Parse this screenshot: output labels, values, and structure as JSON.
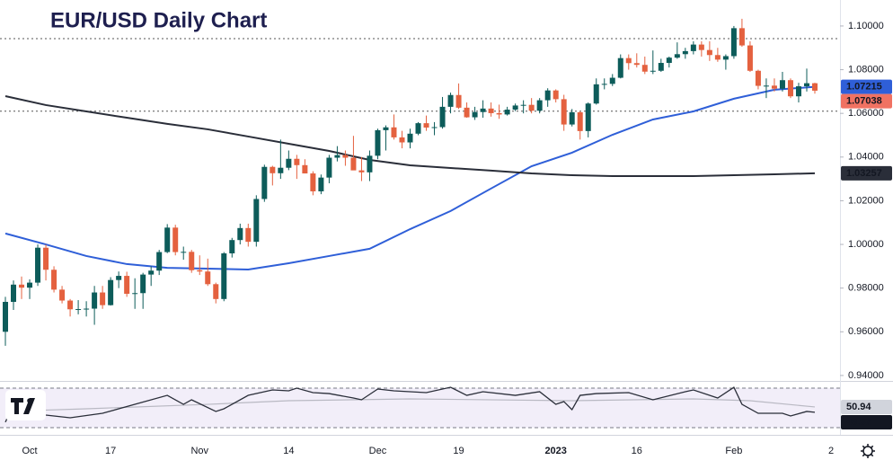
{
  "chart_data": [
    {
      "type": "candlestick",
      "title": "EUR/USD Daily Chart",
      "categories": [
        null,
        null,
        null,
        "Oct",
        null,
        null,
        null,
        null,
        null,
        null,
        null,
        null,
        null,
        "17",
        null,
        null,
        null,
        null,
        null,
        null,
        null,
        null,
        null,
        null,
        "Nov",
        null,
        null,
        null,
        null,
        null,
        null,
        null,
        null,
        null,
        null,
        "14",
        null,
        null,
        null,
        null,
        null,
        null,
        null,
        null,
        null,
        null,
        "Dec",
        null,
        null,
        null,
        null,
        null,
        null,
        null,
        null,
        null,
        "19",
        null,
        null,
        null,
        null,
        null,
        null,
        null,
        null,
        null,
        null,
        null,
        "2023",
        null,
        null,
        null,
        null,
        null,
        null,
        null,
        null,
        null,
        "16",
        null,
        null,
        null,
        null,
        null,
        null,
        null,
        null,
        null,
        null,
        null,
        "Feb",
        null,
        null,
        null,
        null,
        null,
        null,
        null,
        null,
        null,
        null,
        null,
        "2"
      ],
      "open": [
        0.96,
        0.9737,
        0.9816,
        0.9802,
        0.9825,
        0.9985,
        0.9884,
        0.9793,
        0.9743,
        0.9703,
        0.9704,
        0.9706,
        0.978,
        0.9722,
        0.9837,
        0.9856,
        0.9774,
        0.9777,
        0.9862,
        0.988,
        0.9965,
        1.0077,
        0.9965,
        0.9966,
        0.9882,
        0.9876,
        0.9818,
        0.975,
        0.9959,
        1.002,
        1.0075,
        1.0012,
        1.0208,
        1.0355,
        1.0326,
        1.0351,
        1.0392,
        1.0363,
        1.0325,
        1.0243,
        1.0306,
        1.0397,
        1.0409,
        1.0397,
        1.0339,
        1.033,
        1.0406,
        1.0523,
        1.0536,
        1.049,
        1.0467,
        1.0507,
        1.0555,
        1.0535,
        1.0537,
        1.063,
        1.0684,
        1.0626,
        1.0582,
        1.0606,
        1.0622,
        1.0601,
        1.0595,
        1.0617,
        1.0636,
        1.0639,
        1.0612,
        1.066,
        1.0705,
        1.0665,
        1.0549,
        1.0605,
        1.0519,
        1.0645,
        1.0733,
        1.0735,
        1.0763,
        1.0853,
        1.083,
        1.0822,
        1.0791,
        1.0795,
        1.0831,
        1.0855,
        1.0871,
        1.0885,
        1.0915,
        1.089,
        1.0867,
        1.0846,
        1.0862,
        1.099,
        1.0911,
        1.0795,
        1.0726,
        1.0727,
        1.0713,
        1.0752,
        1.0678,
        1.0724,
        1.0738,
        null,
        null
      ],
      "high": [
        0.976,
        0.9835,
        0.9853,
        0.984,
        1.0,
        0.9999,
        0.99,
        0.981,
        0.975,
        0.9745,
        0.974,
        0.981,
        0.981,
        0.985,
        0.9876,
        0.9875,
        0.9845,
        0.987,
        0.99,
        0.9975,
        1.0093,
        1.009,
        0.999,
        0.9975,
        0.995,
        0.9935,
        0.9825,
        0.9965,
        1.003,
        1.0095,
        1.0095,
        1.0225,
        1.0365,
        1.036,
        1.048,
        1.043,
        1.041,
        1.039,
        1.0335,
        1.032,
        1.041,
        1.045,
        1.043,
        1.0497,
        1.04,
        1.043,
        1.053,
        1.0545,
        1.0595,
        1.052,
        1.053,
        1.056,
        1.059,
        1.056,
        1.0675,
        1.0695,
        1.0737,
        1.065,
        1.063,
        1.066,
        1.065,
        1.064,
        1.063,
        1.0645,
        1.066,
        1.067,
        1.067,
        1.0715,
        1.071,
        1.0685,
        1.062,
        1.061,
        1.065,
        1.076,
        1.076,
        1.078,
        1.087,
        1.087,
        1.0875,
        1.086,
        1.0888,
        1.085,
        1.086,
        1.0925,
        1.09,
        1.093,
        1.093,
        1.093,
        1.09,
        1.087,
        1.1,
        1.1033,
        1.093,
        1.08,
        1.076,
        1.076,
        1.079,
        1.076,
        1.074,
        1.0805,
        1.074,
        null,
        null
      ],
      "low": [
        0.9536,
        0.97,
        0.975,
        0.975,
        0.981,
        0.9835,
        0.978,
        0.973,
        0.967,
        0.968,
        0.967,
        0.9632,
        0.9705,
        0.972,
        0.98,
        0.976,
        0.9705,
        0.9705,
        0.981,
        0.986,
        0.996,
        0.995,
        0.993,
        0.987,
        0.986,
        0.981,
        0.973,
        0.974,
        0.994,
        1.0,
        0.999,
        0.999,
        1.0195,
        1.027,
        1.03,
        1.034,
        1.03,
        1.0325,
        1.0225,
        1.023,
        1.028,
        1.038,
        1.036,
        1.034,
        1.029,
        1.029,
        1.039,
        1.043,
        1.048,
        1.044,
        1.044,
        1.05,
        1.052,
        1.05,
        1.053,
        1.06,
        1.062,
        1.058,
        1.057,
        1.058,
        1.0585,
        1.0575,
        1.059,
        1.061,
        1.06,
        1.06,
        1.06,
        1.063,
        1.065,
        1.052,
        1.054,
        1.048,
        1.049,
        1.064,
        1.071,
        1.0725,
        1.076,
        1.08,
        1.081,
        1.078,
        1.078,
        1.079,
        1.081,
        1.085,
        1.085,
        1.087,
        1.086,
        1.084,
        1.0836,
        1.08,
        1.085,
        1.0905,
        1.079,
        1.071,
        1.067,
        1.07,
        1.07,
        1.067,
        1.065,
        1.07,
        1.069,
        null,
        null
      ],
      "close": [
        0.9737,
        0.9816,
        0.9802,
        0.9825,
        0.9985,
        0.9884,
        0.9793,
        0.9743,
        0.9703,
        0.9704,
        0.9706,
        0.978,
        0.9722,
        0.9837,
        0.9856,
        0.9774,
        0.9777,
        0.9862,
        0.988,
        0.9965,
        1.0077,
        0.9965,
        0.9966,
        0.9882,
        0.9876,
        0.9818,
        0.975,
        0.9959,
        1.002,
        1.0075,
        1.0012,
        1.0208,
        1.0355,
        1.0326,
        1.0351,
        1.0392,
        1.0363,
        1.0325,
        1.0243,
        1.0306,
        1.0397,
        1.0409,
        1.0397,
        1.0339,
        1.033,
        1.0406,
        1.0523,
        1.0536,
        1.049,
        1.0467,
        1.0507,
        1.0555,
        1.0535,
        1.0537,
        1.063,
        1.0684,
        1.0626,
        1.0582,
        1.0606,
        1.0622,
        1.0601,
        1.0595,
        1.0617,
        1.0636,
        1.0639,
        1.0612,
        1.066,
        1.0705,
        1.0665,
        1.0549,
        1.0605,
        1.0519,
        1.0645,
        1.0733,
        1.0735,
        1.0763,
        1.0853,
        1.083,
        1.0822,
        1.0791,
        1.0795,
        1.0831,
        1.0855,
        1.0871,
        1.0885,
        1.0915,
        1.089,
        1.0867,
        1.0846,
        1.0862,
        1.099,
        1.0911,
        1.0795,
        1.0726,
        1.0727,
        1.0713,
        1.0752,
        1.0678,
        1.0724,
        1.0738,
        1.07038,
        null,
        null
      ],
      "up_color": "#0d5c5a",
      "down_color": "#e4613f",
      "lines": [
        {
          "color": "#2f5fd8",
          "x": [
            0,
            5,
            10,
            15,
            20,
            25,
            30,
            35,
            40,
            45,
            50,
            55,
            60,
            65,
            70,
            75,
            80,
            85,
            90,
            95,
            100
          ],
          "values": [
            1.005,
            1.0,
            0.9947,
            0.991,
            0.9893,
            0.9889,
            0.9885,
            0.9914,
            0.9947,
            0.998,
            1.007,
            1.0153,
            1.0256,
            1.0358,
            1.042,
            1.0502,
            1.0572,
            1.0609,
            1.0667,
            1.0708,
            1.07215
          ]
        },
        {
          "color": "#2a2e39",
          "x": [
            0,
            5,
            10,
            15,
            20,
            25,
            30,
            35,
            40,
            45,
            50,
            55,
            60,
            65,
            70,
            75,
            80,
            85,
            90,
            95,
            100
          ],
          "values": [
            1.0679,
            1.0638,
            1.0609,
            1.058,
            1.0552,
            1.0527,
            1.0494,
            1.0461,
            1.0428,
            1.0387,
            1.0362,
            1.035,
            1.0338,
            1.0325,
            1.0317,
            1.0313,
            1.0313,
            1.0313,
            1.0317,
            1.0321,
            1.03257
          ]
        }
      ],
      "levels": [
        1.0942,
        1.061
      ],
      "ylim": [
        0.9375,
        1.1119
      ],
      "yticks": [
        {
          "value": 1.1,
          "label": "1.10000"
        },
        {
          "value": 1.08,
          "label": "1.08000"
        },
        {
          "value": 1.06,
          "label": "1.06000"
        },
        {
          "value": 1.04,
          "label": "1.04000"
        },
        {
          "value": 1.02,
          "label": "1.02000"
        },
        {
          "value": 1.0,
          "label": "1.00000"
        },
        {
          "value": 0.98,
          "label": "0.98000"
        },
        {
          "value": 0.96,
          "label": "0.96000"
        },
        {
          "value": 0.94,
          "label": "0.94000"
        }
      ]
    },
    {
      "type": "line",
      "series": [
        {
          "color": "#b9b9c3",
          "x": [
            0,
            10,
            25,
            35,
            50,
            70,
            85,
            92,
            100
          ],
          "values": [
            46.4,
            49.1,
            53.6,
            57.3,
            59.1,
            57.3,
            59.1,
            57.3,
            50.94
          ]
        },
        {
          "color": "#2a2e39",
          "x": [
            0,
            1,
            5,
            8,
            12,
            14,
            16,
            20,
            22,
            23,
            26,
            27,
            30,
            33,
            35,
            36,
            38,
            40,
            43,
            44,
            46,
            48,
            52,
            55,
            57,
            59,
            63,
            66,
            68,
            69,
            70,
            71,
            73,
            77,
            80,
            84,
            85,
            88,
            90,
            91,
            93,
            96,
            97,
            99,
            100
          ],
          "values": [
            35.5,
            53.6,
            42.7,
            40,
            44.5,
            49.1,
            53.6,
            62.7,
            53.6,
            58.2,
            46.4,
            49.1,
            62.7,
            68.2,
            67.3,
            70,
            65.5,
            64.5,
            60,
            58.2,
            69.1,
            67.3,
            65.5,
            70.9,
            62.7,
            66.4,
            62.7,
            66.4,
            53.6,
            56.4,
            48.2,
            62.7,
            64.5,
            65.5,
            58.2,
            66.4,
            68.2,
            60,
            70.9,
            53.6,
            44.5,
            44.5,
            41.8,
            46.4,
            45.57
          ]
        }
      ],
      "levels": [
        70,
        30
      ],
      "ylim": [
        24.5,
        76.4
      ]
    }
  ]
}
